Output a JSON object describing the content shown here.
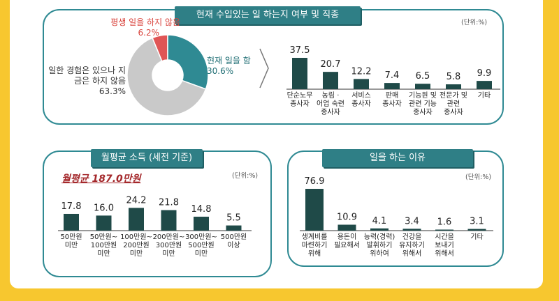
{
  "colors": {
    "bar": "#1f4a48",
    "teal": "#2f8a93",
    "title_bg": "#2f7f86",
    "red": "#e05555",
    "gray": "#c9c9c9",
    "highlight": "#a4282b"
  },
  "chart_data": [
    {
      "type": "pie",
      "title": "현재 수입있는 일 하는지 여부 및 직종",
      "slices": [
        {
          "label": "현재 일을 함",
          "value": 30.6,
          "display": "30.6%",
          "color": "#2f8a93"
        },
        {
          "label": "일한 경험은 있으나 지금은 하지 않음",
          "value": 63.3,
          "display": "63.3%",
          "color": "#c9c9c9"
        },
        {
          "label": "평생 일을 하지 않음",
          "value": 6.2,
          "display": "6.2%",
          "color": "#e05555"
        }
      ]
    },
    {
      "type": "bar",
      "unit": "(단위:%)",
      "categories": [
        "단순노무 종사자",
        "농림 · 어업 숙련 종사자",
        "서비스 종사자",
        "판매 종사자",
        "기능원 관련 기능 종사자",
        "전문가 및 관련 종사자",
        "기타"
      ],
      "category_lines": [
        [
          "단순노무",
          "종사자"
        ],
        [
          "농림 ·",
          "어업 숙련",
          "종사자"
        ],
        [
          "서비스",
          "종사자"
        ],
        [
          "판매",
          "종사자"
        ],
        [
          "기능원 및",
          "관련 기능",
          "종사자"
        ],
        [
          "전문가 및",
          "관련",
          "종사자"
        ],
        [
          "기타"
        ]
      ],
      "values": [
        37.5,
        20.7,
        12.2,
        7.4,
        6.5,
        5.8,
        9.9
      ],
      "value_labels": [
        "37.5",
        "20.7",
        "12.2",
        "7.4",
        "6.5",
        "5.8",
        "9.9"
      ]
    },
    {
      "type": "bar",
      "title": "월평균 소득 (세전 기준)",
      "subtitle": "월평균 187.0만원",
      "unit": "(단위:%)",
      "categories": [
        "50만원 미만",
        "50만원~ 100만원 미만",
        "100만원~ 200만원 미만",
        "200만원~ 300만원 미만",
        "300만원~ 500만원 미만",
        "500만원 이상"
      ],
      "category_lines": [
        [
          "50만원",
          "미만"
        ],
        [
          "50만원~",
          "100만원",
          "미만"
        ],
        [
          "100만원~",
          "200만원",
          "미만"
        ],
        [
          "200만원~",
          "300만원",
          "미만"
        ],
        [
          "300만원~",
          "500만원",
          "미만"
        ],
        [
          "500만원",
          "이상"
        ]
      ],
      "values": [
        17.8,
        16.0,
        24.2,
        21.8,
        14.8,
        5.5
      ],
      "value_labels": [
        "17.8",
        "16.0",
        "24.2",
        "21.8",
        "14.8",
        "5.5"
      ]
    },
    {
      "type": "bar",
      "title": "일을 하는 이유",
      "unit": "(단위:%)",
      "categories": [
        "생계비를 마련하기 위해",
        "용돈이 필요해서",
        "능력(경력) 발휘하기 위하여",
        "건강을 유지하기 위해서",
        "시간을 보내기 위해서",
        "기타"
      ],
      "category_lines": [
        [
          "생계비를",
          "마련하기",
          "위해"
        ],
        [
          "용돈이",
          "필요해서"
        ],
        [
          "능력(경력)",
          "발휘하기",
          "위하여"
        ],
        [
          "건강을",
          "유지하기",
          "위해서"
        ],
        [
          "시간을",
          "보내기",
          "위해서"
        ],
        [
          "기타"
        ]
      ],
      "values": [
        76.9,
        10.9,
        4.1,
        3.4,
        1.6,
        3.1
      ],
      "value_labels": [
        "76.9",
        "10.9",
        "4.1",
        "3.4",
        "1.6",
        "3.1"
      ]
    }
  ]
}
